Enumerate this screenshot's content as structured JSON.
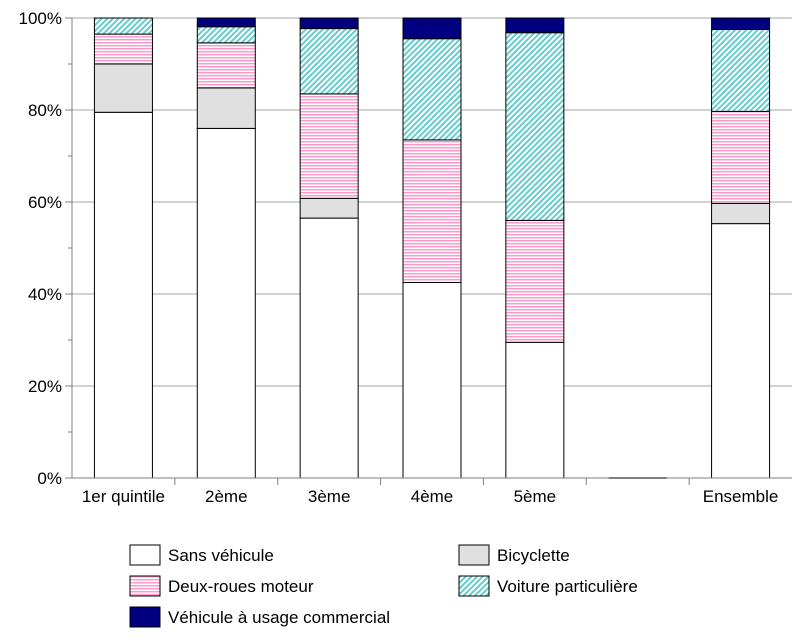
{
  "chart_data": {
    "type": "bar",
    "stacked": true,
    "categories": [
      "1er quintile",
      "2ème",
      "3ème",
      "4ème",
      "5ème",
      "",
      "Ensemble"
    ],
    "series": [
      {
        "name": "Sans véhicule",
        "values": [
          79.5,
          76,
          56.5,
          42.5,
          29.5,
          0,
          55.3
        ],
        "color": "#ffffff",
        "pattern": "solid"
      },
      {
        "name": "Bicyclette",
        "values": [
          10.5,
          8.8,
          4.3,
          0,
          0,
          0,
          4.4
        ],
        "color": "#e0e0e0",
        "pattern": "solid"
      },
      {
        "name": "Deux-roues moteur",
        "values": [
          6.5,
          9.8,
          22.7,
          31,
          26.5,
          0,
          20
        ],
        "color": "#ff99cc",
        "pattern": "horizontal-lines"
      },
      {
        "name": "Voiture particulière",
        "values": [
          3.5,
          3.5,
          14.2,
          22,
          40.8,
          0,
          17.8
        ],
        "color": "#66cccc",
        "pattern": "diagonal-lines"
      },
      {
        "name": "Véhicule à usage commercial",
        "values": [
          0,
          1.9,
          2.3,
          4.5,
          3.2,
          0,
          2.5
        ],
        "color": "#000080",
        "pattern": "solid"
      }
    ],
    "ylim": [
      0,
      100
    ],
    "ytick_labels": [
      "0%",
      "20%",
      "40%",
      "60%",
      "80%",
      "100%"
    ],
    "title": "",
    "xlabel": "",
    "ylabel": "",
    "grid": true,
    "legend_placement": "bottom"
  }
}
